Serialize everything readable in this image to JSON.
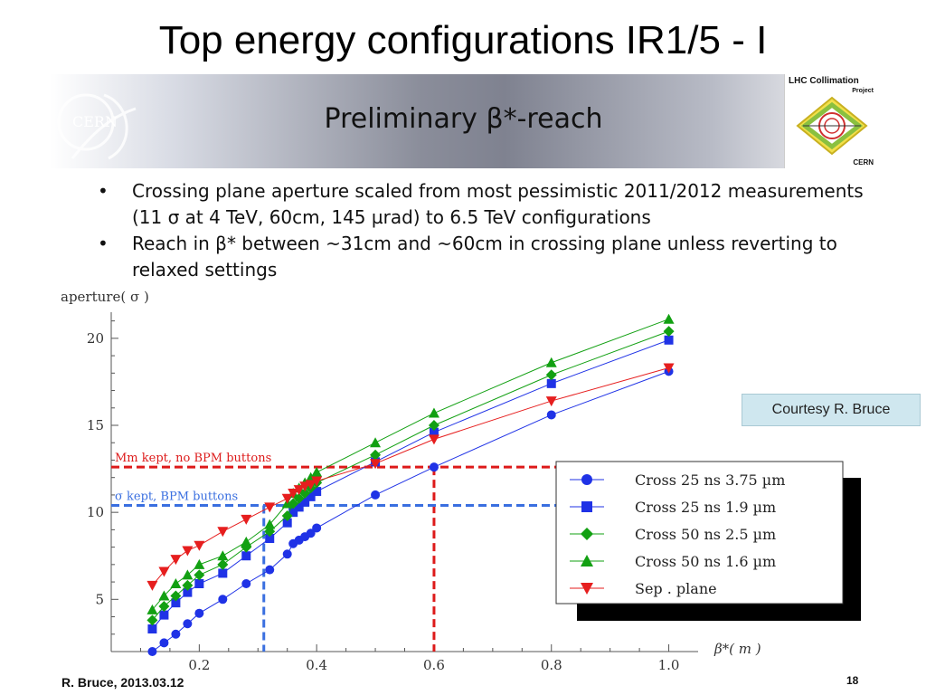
{
  "slide": {
    "title": "Top energy configurations IR1/5 - I",
    "banner_title": "Preliminary β*-reach",
    "logo_left": "CERN",
    "logo_right_title": "LHC Collimation",
    "logo_right_sub": "Project",
    "logo_right_cern": "CERN",
    "bullets": [
      "Crossing plane aperture scaled from most pessimistic 2011/2012 measurements (11 σ at 4 TeV, 60cm, 145 µrad) to 6.5 TeV configurations",
      "Reach in β* between ~31cm and ~60cm in crossing plane unless reverting to relaxed settings"
    ],
    "courtesy": "Courtesy R. Bruce",
    "footer_left": "R. Bruce, 2013.03.12",
    "footer_right": "18"
  },
  "chart_data": {
    "type": "line",
    "ylabel": "aperture( σ )",
    "xlabel": "β*( m )",
    "xlim": [
      0.05,
      1.05
    ],
    "ylim": [
      2.0,
      21.5
    ],
    "x_ticks": [
      0.2,
      0.4,
      0.6,
      0.8,
      1.0
    ],
    "x_tick_labels": [
      "0.2",
      "0.4",
      "0.6",
      "0.8",
      "1.0"
    ],
    "y_ticks": [
      5,
      10,
      15,
      20
    ],
    "y_tick_labels": [
      "5",
      "10",
      "15",
      "20"
    ],
    "grid": false,
    "legend_position": "bottom-right",
    "colors": {
      "blue": "#1f32e6",
      "green": "#12a012",
      "red": "#e61e1e",
      "dashed_red": "#dd1a1a",
      "dashed_blue": "#3a6fe0"
    },
    "series": [
      {
        "name": "Cross 25 ns 3.75 µm",
        "marker": "circle",
        "color": "#1f32e6",
        "x": [
          0.12,
          0.14,
          0.16,
          0.18,
          0.2,
          0.24,
          0.28,
          0.32,
          0.35,
          0.36,
          0.37,
          0.38,
          0.39,
          0.4,
          0.5,
          0.6,
          0.8,
          1.0
        ],
        "y": [
          2.0,
          2.5,
          3.0,
          3.6,
          4.2,
          5.0,
          5.9,
          6.7,
          7.6,
          8.2,
          8.4,
          8.6,
          8.8,
          9.1,
          11.0,
          12.6,
          15.6,
          18.1
        ]
      },
      {
        "name": "Cross 25 ns 1.9 µm",
        "marker": "square",
        "color": "#1f32e6",
        "x": [
          0.12,
          0.14,
          0.16,
          0.18,
          0.2,
          0.24,
          0.28,
          0.32,
          0.35,
          0.36,
          0.37,
          0.38,
          0.39,
          0.4,
          0.5,
          0.6,
          0.8,
          1.0
        ],
        "y": [
          3.3,
          4.1,
          4.8,
          5.4,
          5.9,
          6.5,
          7.5,
          8.5,
          9.4,
          10.0,
          10.3,
          10.6,
          10.9,
          11.2,
          12.9,
          14.6,
          17.4,
          19.9
        ]
      },
      {
        "name": "Cross 50 ns 2.5 µm",
        "marker": "diamond",
        "color": "#12a012",
        "x": [
          0.12,
          0.14,
          0.16,
          0.18,
          0.2,
          0.24,
          0.28,
          0.32,
          0.35,
          0.36,
          0.37,
          0.38,
          0.39,
          0.4,
          0.5,
          0.6,
          0.8,
          1.0
        ],
        "y": [
          3.8,
          4.6,
          5.2,
          5.8,
          6.4,
          7.0,
          8.0,
          8.9,
          9.8,
          10.5,
          10.8,
          11.1,
          11.4,
          11.7,
          13.3,
          15.0,
          17.9,
          20.4
        ]
      },
      {
        "name": "Cross 50 ns 1.6 µm",
        "marker": "triangle-up",
        "color": "#12a012",
        "x": [
          0.12,
          0.14,
          0.16,
          0.18,
          0.2,
          0.24,
          0.28,
          0.32,
          0.35,
          0.36,
          0.37,
          0.38,
          0.39,
          0.4,
          0.5,
          0.6,
          0.8,
          1.0
        ],
        "y": [
          4.4,
          5.2,
          5.9,
          6.4,
          7.0,
          7.5,
          8.3,
          9.3,
          10.5,
          11.1,
          11.4,
          11.7,
          12.0,
          12.3,
          14.0,
          15.7,
          18.6,
          21.1
        ]
      },
      {
        "name": "Sep . plane",
        "marker": "triangle-down",
        "color": "#e61e1e",
        "x": [
          0.12,
          0.14,
          0.16,
          0.18,
          0.2,
          0.24,
          0.28,
          0.32,
          0.35,
          0.36,
          0.37,
          0.38,
          0.39,
          0.4,
          0.5,
          0.6,
          0.8,
          1.0
        ],
        "y": [
          5.8,
          6.6,
          7.3,
          7.8,
          8.1,
          8.9,
          9.6,
          10.3,
          10.8,
          11.1,
          11.3,
          11.5,
          11.6,
          11.8,
          12.8,
          14.2,
          16.4,
          18.3
        ]
      }
    ],
    "reference_lines": [
      {
        "label": "Mm kept, no BPM buttons",
        "color": "#dd1a1a",
        "y": 12.6,
        "x": 0.6
      },
      {
        "label": "σ kept, BPM buttons",
        "color": "#3a6fe0",
        "y": 10.4,
        "x": 0.31
      }
    ]
  }
}
